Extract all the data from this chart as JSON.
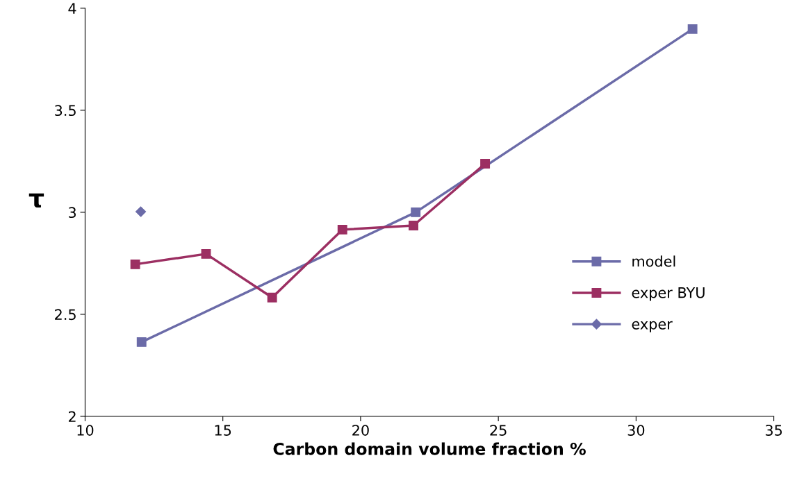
{
  "chart_data": {
    "type": "line",
    "xlabel": "Carbon domain volume fraction %",
    "ylabel": "τ",
    "xlim": [
      10,
      35
    ],
    "xticks": [
      10,
      15,
      20,
      25,
      30,
      35
    ],
    "ylim": [
      2,
      4
    ],
    "yticks": [
      2,
      2.5,
      3,
      3.5,
      4
    ],
    "grid": false,
    "legend": "right",
    "marker": "square",
    "series": [
      {
        "name": "model",
        "color": "#6b6ba8",
        "x": [
          12.05,
          22.0,
          32.05
        ],
        "values": [
          2.364,
          3.0,
          3.898
        ]
      },
      {
        "name": "exper BYU",
        "color": "#9c2f62",
        "x": [
          11.82,
          14.39,
          16.79,
          19.34,
          21.92,
          24.52
        ],
        "values": [
          2.745,
          2.796,
          2.582,
          2.915,
          2.935,
          3.238
        ]
      },
      {
        "name": "exper",
        "type": "scatter",
        "marker": "diamond",
        "color": "#6b6ba8",
        "x": [
          12.02
        ],
        "values": [
          3.003
        ]
      }
    ]
  }
}
